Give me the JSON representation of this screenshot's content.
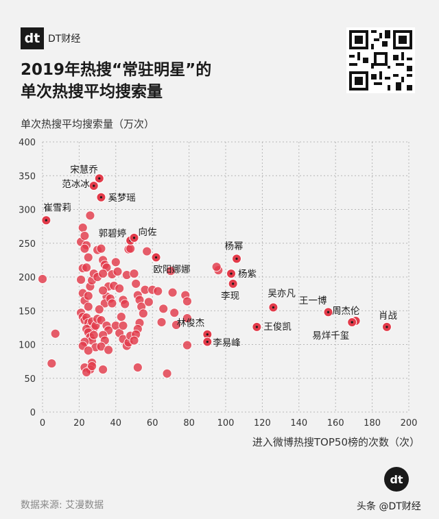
{
  "brand": {
    "logo_mark": "dt",
    "logo_text": "DT财经"
  },
  "title_lines": [
    "2019年热搜“常驻明星”的",
    "单次热搜平均搜索量"
  ],
  "source": "数据来源: 艾漫数据",
  "watermark": "头条 @DT财经",
  "badge": "dt",
  "colors": {
    "point": "#e23b4a",
    "point_stroke": "#ffffff",
    "background": "#f2f2f2",
    "grid": "#b5b5b5"
  },
  "chart_data": {
    "type": "scatter",
    "ylabel": "单次热搜平均搜索量（万次）",
    "xlabel": "进入微博热搜TOP50榜的次数（次）",
    "xlim": [
      0,
      200
    ],
    "ylim": [
      0,
      400
    ],
    "xticks": [
      "0",
      "20",
      "40",
      "60",
      "80",
      "100",
      "120",
      "140",
      "160",
      "180",
      "200"
    ],
    "yticks": [
      "0",
      "50",
      "100",
      "150",
      "200",
      "250",
      "300",
      "350",
      "400"
    ],
    "grid": true,
    "labeled_points": [
      {
        "name": "宋慧乔",
        "x": 31,
        "y": 346
      },
      {
        "name": "范冰冰",
        "x": 28,
        "y": 335
      },
      {
        "name": "奚梦瑶",
        "x": 32,
        "y": 318
      },
      {
        "name": "崔雪莉",
        "x": 2,
        "y": 284
      },
      {
        "name": "郭碧婷",
        "x": 48,
        "y": 254
      },
      {
        "name": "向佐",
        "x": 50,
        "y": 258
      },
      {
        "name": "欧阳娜娜",
        "x": 62,
        "y": 229
      },
      {
        "name": "杨幂",
        "x": 106,
        "y": 227
      },
      {
        "name": "杨紫",
        "x": 103,
        "y": 205
      },
      {
        "name": "李现",
        "x": 104,
        "y": 190
      },
      {
        "name": "吴亦凡",
        "x": 126,
        "y": 155
      },
      {
        "name": "王一博",
        "x": 156,
        "y": 148
      },
      {
        "name": "周杰伦",
        "x": 171,
        "y": 135
      },
      {
        "name": "肖战",
        "x": 188,
        "y": 126
      },
      {
        "name": "易烊千玺",
        "x": 169,
        "y": 133
      },
      {
        "name": "王俊凯",
        "x": 117,
        "y": 126
      },
      {
        "name": "林俊杰",
        "x": 90,
        "y": 115
      },
      {
        "name": "李易峰",
        "x": 90,
        "y": 104
      }
    ],
    "other_points": [
      [
        0,
        197
      ],
      [
        7,
        116
      ],
      [
        5,
        72
      ],
      [
        21,
        252
      ],
      [
        22,
        273
      ],
      [
        23,
        261
      ],
      [
        24,
        247
      ],
      [
        25,
        229
      ],
      [
        23,
        242
      ],
      [
        26,
        291
      ],
      [
        22,
        213
      ],
      [
        24,
        214
      ],
      [
        21,
        196
      ],
      [
        22,
        176
      ],
      [
        23,
        165
      ],
      [
        25,
        172
      ],
      [
        26,
        186
      ],
      [
        27,
        195
      ],
      [
        28,
        205
      ],
      [
        25,
        156
      ],
      [
        21,
        147
      ],
      [
        22,
        141
      ],
      [
        23,
        136
      ],
      [
        24,
        140
      ],
      [
        25,
        132
      ],
      [
        26,
        127
      ],
      [
        27,
        134
      ],
      [
        28,
        124
      ],
      [
        24,
        123
      ],
      [
        25,
        118
      ],
      [
        26,
        111
      ],
      [
        27,
        106
      ],
      [
        28,
        114
      ],
      [
        29,
        128
      ],
      [
        29,
        96
      ],
      [
        23,
        104
      ],
      [
        22,
        98
      ],
      [
        25,
        91
      ],
      [
        27,
        73
      ],
      [
        23,
        66
      ],
      [
        26,
        63
      ],
      [
        24,
        59
      ],
      [
        27,
        68
      ],
      [
        33,
        63
      ],
      [
        30,
        240
      ],
      [
        32,
        242
      ],
      [
        33,
        225
      ],
      [
        34,
        218
      ],
      [
        35,
        214
      ],
      [
        30,
        200
      ],
      [
        33,
        205
      ],
      [
        36,
        186
      ],
      [
        35,
        171
      ],
      [
        34,
        161
      ],
      [
        33,
        180
      ],
      [
        31,
        152
      ],
      [
        37,
        168
      ],
      [
        38,
        161
      ],
      [
        30,
        138
      ],
      [
        32,
        136
      ],
      [
        35,
        128
      ],
      [
        36,
        121
      ],
      [
        33,
        114
      ],
      [
        34,
        106
      ],
      [
        32,
        97
      ],
      [
        36,
        92
      ],
      [
        38,
        204
      ],
      [
        40,
        222
      ],
      [
        41,
        208
      ],
      [
        39,
        187
      ],
      [
        42,
        183
      ],
      [
        44,
        166
      ],
      [
        43,
        141
      ],
      [
        40,
        128
      ],
      [
        42,
        117
      ],
      [
        44,
        108
      ],
      [
        46,
        98
      ],
      [
        47,
        103
      ],
      [
        48,
        113
      ],
      [
        44,
        128
      ],
      [
        45,
        160
      ],
      [
        46,
        203
      ],
      [
        47,
        241
      ],
      [
        48,
        242
      ],
      [
        50,
        205
      ],
      [
        51,
        190
      ],
      [
        52,
        173
      ],
      [
        53,
        166
      ],
      [
        54,
        156
      ],
      [
        55,
        146
      ],
      [
        53,
        132
      ],
      [
        52,
        123
      ],
      [
        51,
        115
      ],
      [
        50,
        106
      ],
      [
        52,
        66
      ],
      [
        57,
        238
      ],
      [
        56,
        181
      ],
      [
        58,
        163
      ],
      [
        60,
        181
      ],
      [
        62,
        228
      ],
      [
        63,
        179
      ],
      [
        65,
        133
      ],
      [
        66,
        153
      ],
      [
        68,
        57
      ],
      [
        70,
        209
      ],
      [
        71,
        177
      ],
      [
        72,
        147
      ],
      [
        73,
        129
      ],
      [
        78,
        173
      ],
      [
        79,
        164
      ],
      [
        79,
        139
      ],
      [
        79,
        99
      ],
      [
        96,
        210
      ],
      [
        95,
        215
      ]
    ]
  }
}
